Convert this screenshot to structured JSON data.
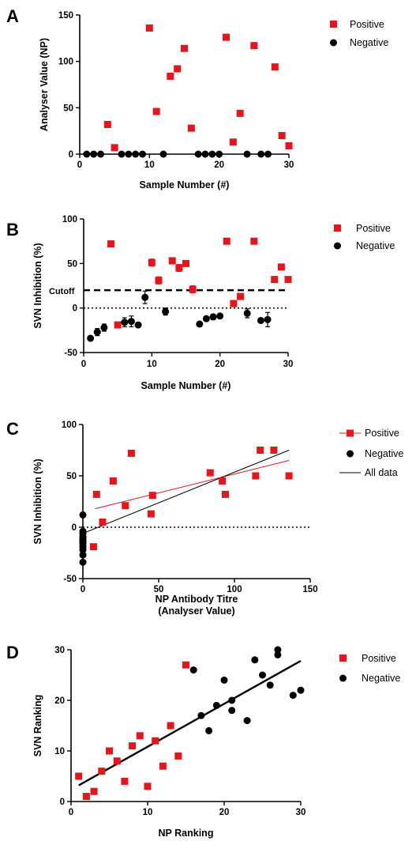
{
  "colors": {
    "positive": "#e8141c",
    "negative": "#000000",
    "fit_all": "#000000",
    "fit_positive": "#e8141c"
  },
  "legend": {
    "positive": "Positive",
    "negative": "Negative",
    "all_data": "All data"
  },
  "panels": {
    "A": {
      "letter": "A"
    },
    "B": {
      "letter": "B",
      "cutoff_label": "Cutoff"
    },
    "C": {
      "letter": "C"
    },
    "D": {
      "letter": "D"
    }
  },
  "chart_data": [
    {
      "id": "A",
      "type": "scatter",
      "xlabel": "Sample Number (#)",
      "ylabel": "Analyser Value (NP)",
      "xlim": [
        0,
        30
      ],
      "ylim": [
        0,
        150
      ],
      "xticks": [
        0,
        10,
        20,
        30
      ],
      "yticks": [
        0,
        50,
        100,
        150
      ],
      "series": [
        {
          "name": "Positive",
          "points": [
            [
              4,
              32
            ],
            [
              5,
              7
            ],
            [
              10,
              136
            ],
            [
              11,
              46
            ],
            [
              13,
              84
            ],
            [
              14,
              92
            ],
            [
              15,
              114
            ],
            [
              16,
              28
            ],
            [
              21,
              126
            ],
            [
              22,
              13
            ],
            [
              23,
              44
            ],
            [
              25,
              117
            ],
            [
              28,
              94
            ],
            [
              29,
              20
            ],
            [
              30,
              9
            ]
          ]
        },
        {
          "name": "Negative",
          "points": [
            [
              1,
              0
            ],
            [
              2,
              0
            ],
            [
              3,
              0
            ],
            [
              6,
              0
            ],
            [
              7,
              0
            ],
            [
              8,
              0
            ],
            [
              9,
              0
            ],
            [
              12,
              0
            ],
            [
              17,
              0
            ],
            [
              18,
              0
            ],
            [
              19,
              0
            ],
            [
              20,
              0
            ],
            [
              24,
              0
            ],
            [
              26,
              0
            ],
            [
              27,
              0
            ]
          ]
        }
      ]
    },
    {
      "id": "B",
      "type": "scatter",
      "xlabel": "Sample Number (#)",
      "ylabel": "SVN Inhibition (%)",
      "xlim": [
        0,
        30
      ],
      "ylim": [
        -50,
        100
      ],
      "xticks": [
        0,
        10,
        20,
        30
      ],
      "yticks": [
        -50,
        0,
        50,
        100
      ],
      "cutoff": 20,
      "series": [
        {
          "name": "Positive",
          "points": [
            [
              4,
              72,
              0
            ],
            [
              5,
              -19,
              0
            ],
            [
              10,
              51,
              4
            ],
            [
              11,
              31,
              4
            ],
            [
              13,
              53,
              0
            ],
            [
              14,
              45,
              4
            ],
            [
              15,
              50,
              0
            ],
            [
              16,
              21,
              4
            ],
            [
              21,
              75,
              0
            ],
            [
              22,
              5,
              0
            ],
            [
              23,
              13,
              3
            ],
            [
              25,
              75,
              0
            ],
            [
              28,
              32,
              0
            ],
            [
              29,
              46,
              0
            ],
            [
              30,
              32,
              0
            ]
          ]
        },
        {
          "name": "Negative",
          "points": [
            [
              1,
              -34,
              0
            ],
            [
              2,
              -27,
              4
            ],
            [
              3,
              -22,
              4
            ],
            [
              6,
              -16,
              5
            ],
            [
              7,
              -15,
              6
            ],
            [
              8,
              -19,
              0
            ],
            [
              9,
              12,
              7
            ],
            [
              12,
              -4,
              4
            ],
            [
              17,
              -18,
              0
            ],
            [
              18,
              -12,
              0
            ],
            [
              19,
              -10,
              3
            ],
            [
              20,
              -9,
              0
            ],
            [
              24,
              -6,
              5
            ],
            [
              26,
              -14,
              0
            ],
            [
              27,
              -13,
              8
            ]
          ]
        }
      ]
    },
    {
      "id": "C",
      "type": "scatter",
      "xlabel": "NP Antibody Titre\n(Analyser Value)",
      "ylabel": "SVN Inhibition (%)",
      "xlim": [
        0,
        150
      ],
      "ylim": [
        -50,
        100
      ],
      "xticks": [
        0,
        50,
        100,
        150
      ],
      "yticks": [
        -50,
        0,
        50,
        100
      ],
      "series": [
        {
          "name": "Positive",
          "points": [
            [
              7,
              -19
            ],
            [
              9,
              32
            ],
            [
              13,
              5
            ],
            [
              20,
              45
            ],
            [
              28,
              21
            ],
            [
              32,
              72
            ],
            [
              45,
              13
            ],
            [
              46,
              31
            ],
            [
              84,
              53
            ],
            [
              92,
              45
            ],
            [
              94,
              32
            ],
            [
              114,
              50
            ],
            [
              117,
              75
            ],
            [
              126,
              75
            ],
            [
              136,
              50
            ]
          ]
        },
        {
          "name": "Negative",
          "points": [
            [
              0,
              12
            ],
            [
              0,
              -4
            ],
            [
              0,
              -6
            ],
            [
              0,
              -9
            ],
            [
              0,
              -10
            ],
            [
              0,
              -12
            ],
            [
              0,
              -13
            ],
            [
              0,
              -14
            ],
            [
              0,
              -15
            ],
            [
              0,
              -16
            ],
            [
              0,
              -18
            ],
            [
              0,
              -19
            ],
            [
              0,
              -22
            ],
            [
              0,
              -27
            ],
            [
              0,
              -34
            ]
          ]
        }
      ],
      "fits": [
        {
          "name": "Positive",
          "from": [
            8,
            18
          ],
          "to": [
            136,
            65
          ]
        },
        {
          "name": "All data",
          "from": [
            0,
            -6
          ],
          "to": [
            136,
            75
          ]
        }
      ]
    },
    {
      "id": "D",
      "type": "scatter",
      "xlabel": "NP Ranking",
      "ylabel": "SVN  Ranking",
      "xlim": [
        0,
        30
      ],
      "ylim": [
        0,
        30
      ],
      "xticks": [
        0,
        10,
        20,
        30
      ],
      "yticks": [
        0,
        10,
        20,
        30
      ],
      "series": [
        {
          "name": "Positive",
          "points": [
            [
              1,
              5
            ],
            [
              2,
              1
            ],
            [
              3,
              2
            ],
            [
              4,
              6
            ],
            [
              5,
              10
            ],
            [
              6,
              8
            ],
            [
              7,
              4
            ],
            [
              8,
              11
            ],
            [
              9,
              13
            ],
            [
              10,
              3
            ],
            [
              11,
              12
            ],
            [
              12,
              7
            ],
            [
              13,
              15
            ],
            [
              14,
              9
            ],
            [
              15,
              27
            ]
          ]
        },
        {
          "name": "Negative",
          "points": [
            [
              16,
              26
            ],
            [
              17,
              17
            ],
            [
              18,
              14
            ],
            [
              19,
              19
            ],
            [
              20,
              24
            ],
            [
              21,
              20
            ],
            [
              21,
              18
            ],
            [
              23,
              16
            ],
            [
              24,
              28
            ],
            [
              25,
              25
            ],
            [
              26,
              23
            ],
            [
              27,
              29
            ],
            [
              27,
              30
            ],
            [
              29,
              21
            ],
            [
              30,
              22
            ]
          ]
        }
      ],
      "fits": [
        {
          "name": "All data",
          "from": [
            1,
            3.2
          ],
          "to": [
            30,
            27.8
          ]
        }
      ]
    }
  ]
}
